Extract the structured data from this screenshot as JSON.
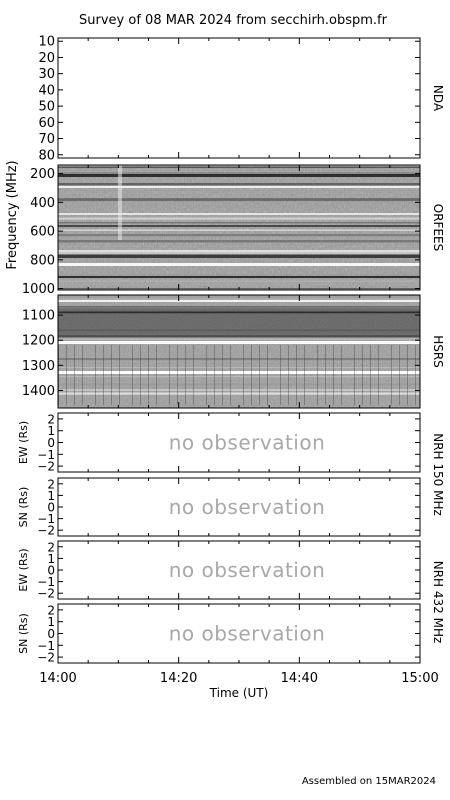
{
  "title": "Survey of 08 MAR 2024 from secchirh.obspm.fr",
  "footer": "Assembled on 15MAR2024",
  "chart_data": {
    "type": "heatmap",
    "x_axis": {
      "label": "Time (UT)",
      "range": [
        "14:00",
        "15:00"
      ],
      "ticks": [
        "14:00",
        "14:20",
        "14:40",
        "15:00"
      ]
    },
    "panels": [
      {
        "id": "nda",
        "instrument": "NDA",
        "yticks": [
          10,
          20,
          30,
          40,
          50,
          60,
          70,
          80
        ],
        "ylim": [
          8,
          82
        ],
        "status": "blank"
      },
      {
        "id": "orfees",
        "instrument": "ORFEES",
        "yticks": [
          200,
          400,
          600,
          800,
          1000
        ],
        "ylim": [
          140,
          1010
        ],
        "status": "data"
      },
      {
        "id": "hsrs",
        "instrument": "HSRS",
        "yticks": [
          1100,
          1200,
          1300,
          1400
        ],
        "ylim": [
          1020,
          1470
        ],
        "status": "data"
      },
      {
        "id": "nrh150ew",
        "ylabel": "EW (Rs)",
        "yticks": [
          2,
          1,
          0,
          -1,
          -2
        ],
        "ylim": [
          -2.5,
          2.5
        ],
        "status": "no observation"
      },
      {
        "id": "nrh150sn",
        "ylabel": "SN (Rs)",
        "yticks": [
          2,
          1,
          0,
          -1,
          -2
        ],
        "ylim": [
          -2.5,
          2.5
        ],
        "status": "no observation"
      },
      {
        "id": "nrh432ew",
        "ylabel": "EW (Rs)",
        "yticks": [
          2,
          1,
          0,
          -1,
          -2
        ],
        "ylim": [
          -2.5,
          2.5
        ],
        "status": "no observation"
      },
      {
        "id": "nrh432sn",
        "ylabel": "SN (Rs)",
        "yticks": [
          2,
          1,
          0,
          -1,
          -2
        ],
        "ylim": [
          -2.5,
          2.5
        ],
        "status": "no observation"
      }
    ],
    "frequency_label": "Frequency (MHz)",
    "side_labels": {
      "nrh150": "NRH 150 MHz",
      "nrh432": "NRH 432 MHz"
    },
    "no_obs_text": "no observation"
  }
}
